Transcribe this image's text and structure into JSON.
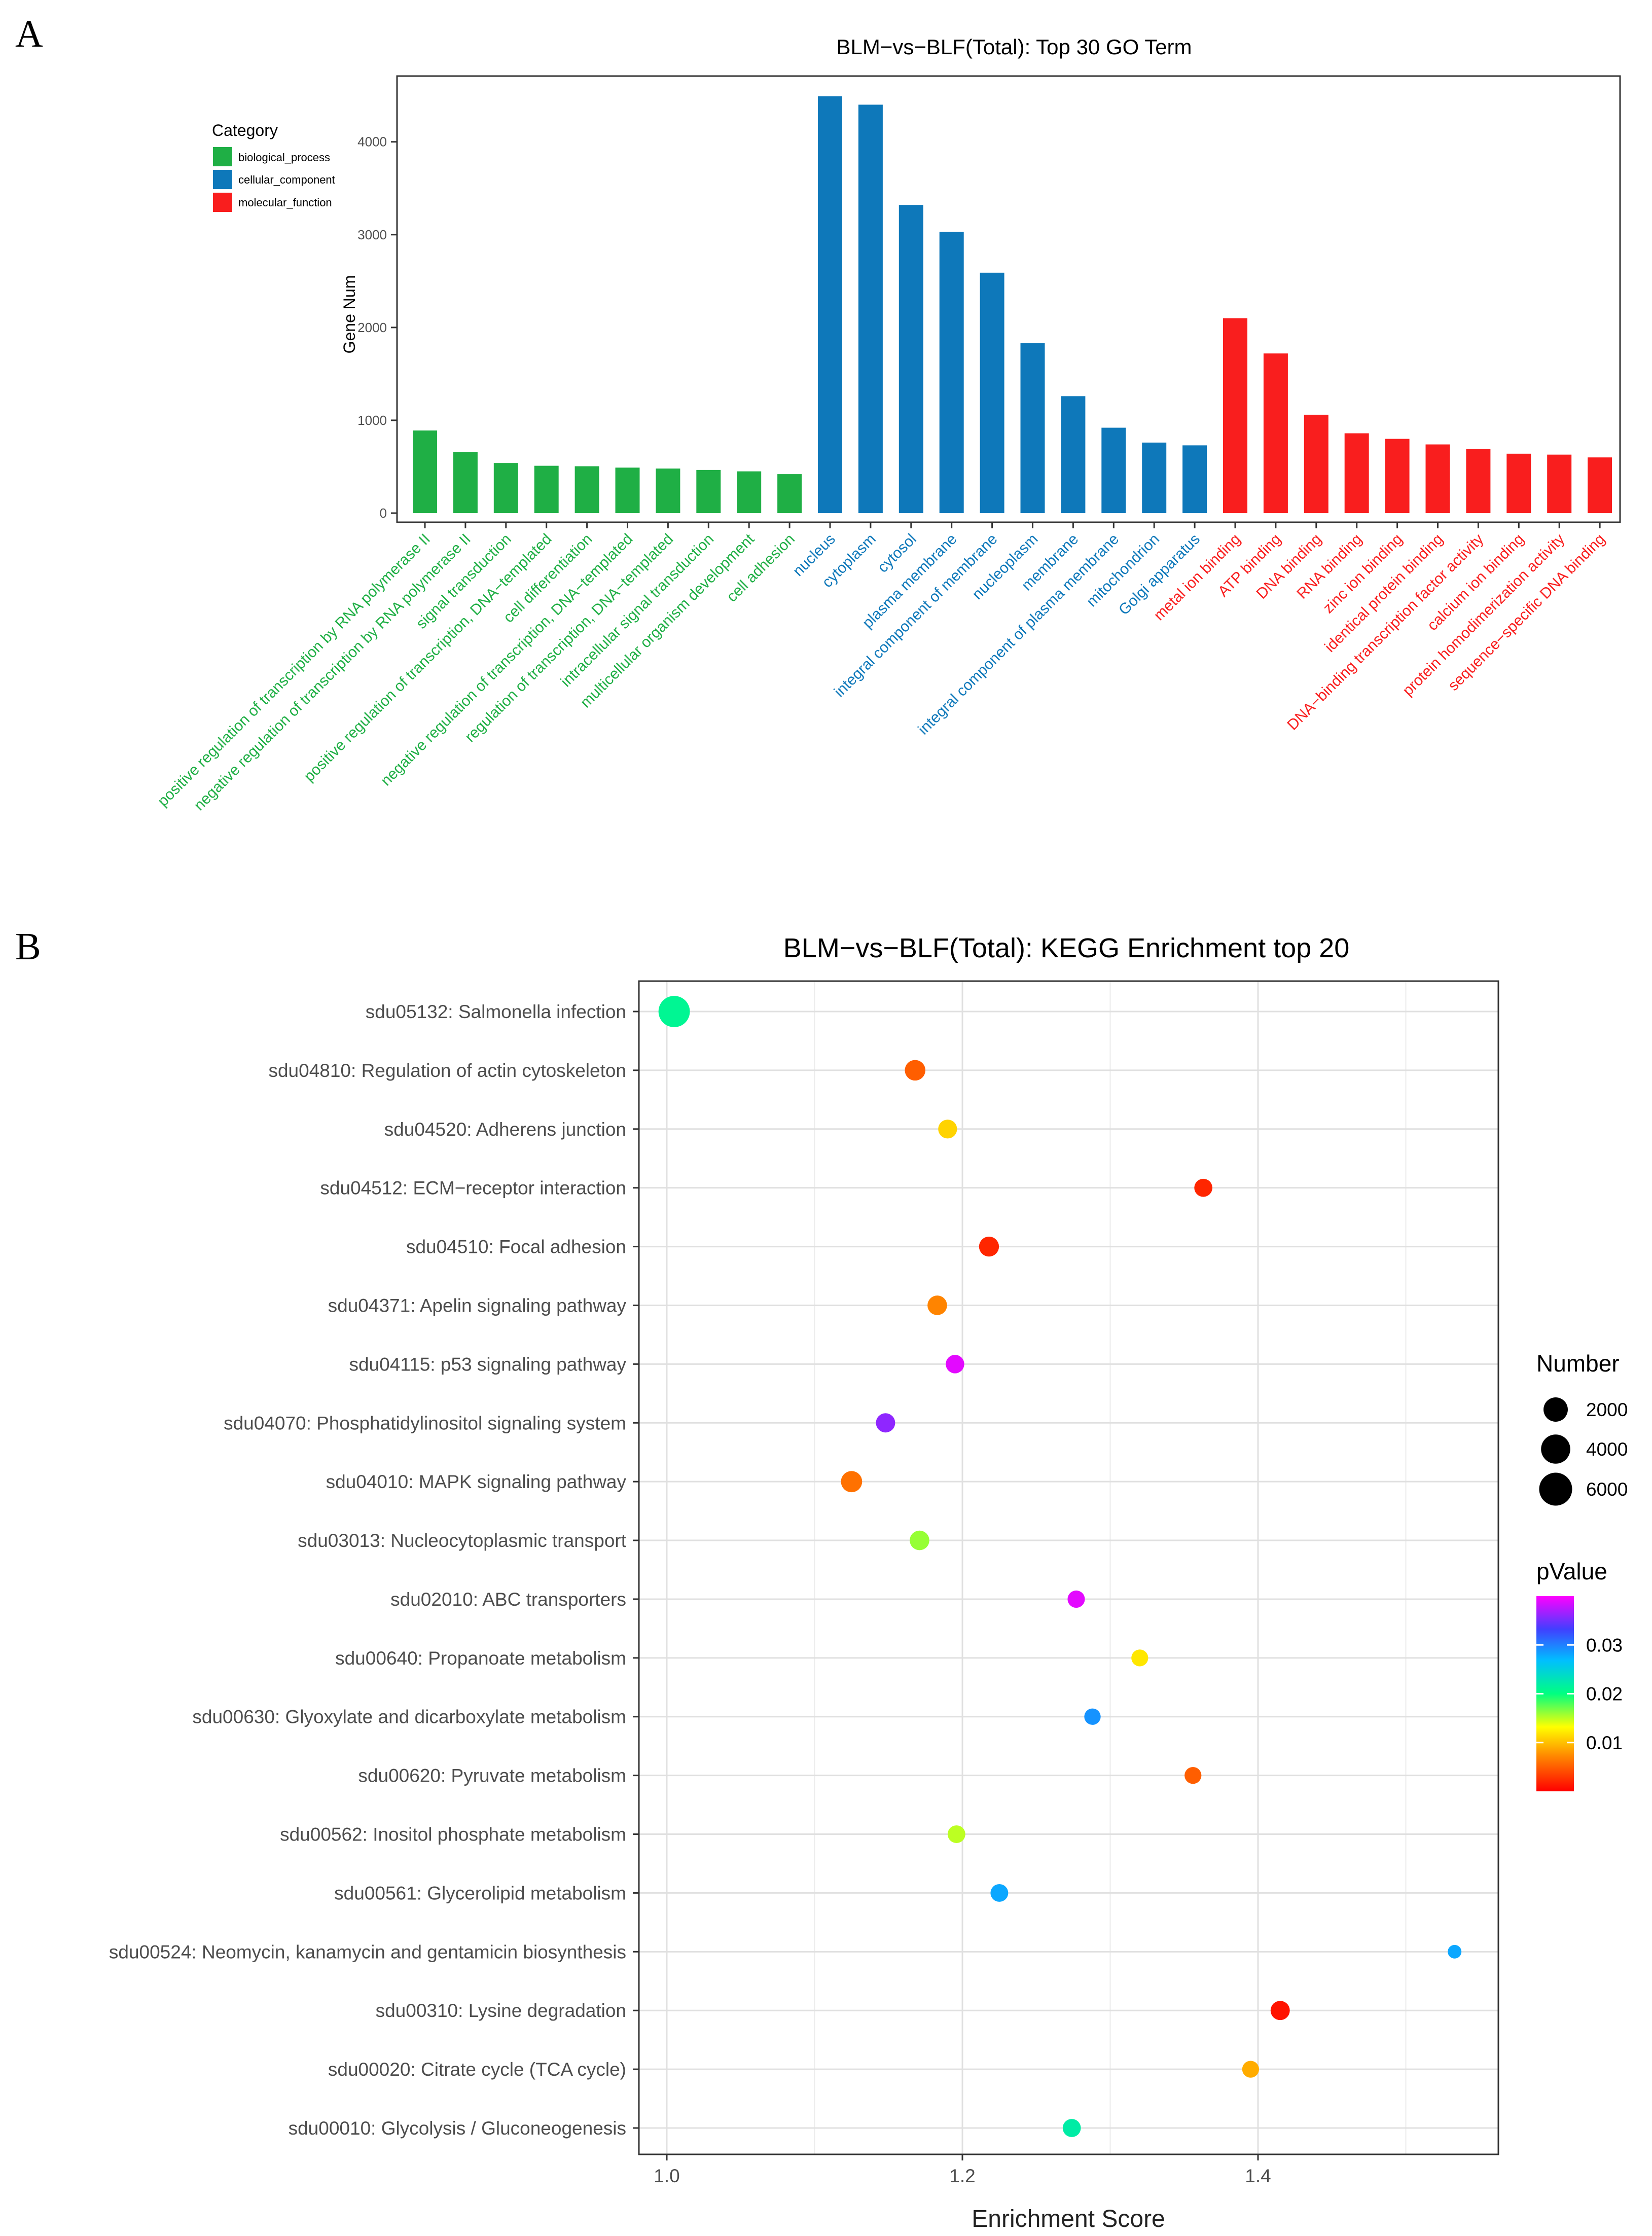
{
  "panels": {
    "a_label": "A",
    "b_label": "B"
  },
  "chart_data": [
    {
      "type": "bar",
      "title": "BLM−vs−BLF(Total): Top 30 GO Term",
      "xlabel": "",
      "ylabel": "Gene Num",
      "ylim": [
        0,
        4650
      ],
      "yticks": [
        0,
        1000,
        2000,
        3000,
        4000
      ],
      "legend": {
        "title": "Category",
        "position": "top-left",
        "entries": [
          {
            "name": "biological_process",
            "color": "#1FAF45"
          },
          {
            "name": "cellular_component",
            "color": "#0E78BA"
          },
          {
            "name": "molecular_function",
            "color": "#F91E1E"
          }
        ]
      },
      "categories": [
        "positive regulation of transcription by RNA polymerase II",
        "negative regulation of transcription by RNA polymerase II",
        "signal transduction",
        "positive regulation of transcription, DNA−templated",
        "cell differentiation",
        "negative regulation of transcription, DNA−templated",
        "regulation of transcription, DNA−templated",
        "intracellular signal transduction",
        "multicellular organism development",
        "cell adhesion",
        "nucleus",
        "cytoplasm",
        "cytosol",
        "plasma membrane",
        "integral component of membrane",
        "nucleoplasm",
        "membrane",
        "integral component of plasma membrane",
        "mitochondrion",
        "Golgi apparatus",
        "metal ion binding",
        "ATP binding",
        "DNA binding",
        "RNA binding",
        "zinc ion binding",
        "identical protein binding",
        "DNA−binding transcription factor activity",
        "calcium ion binding",
        "protein homodimerization activity",
        "sequence−specific DNA binding"
      ],
      "values": [
        890,
        660,
        540,
        510,
        505,
        490,
        480,
        465,
        450,
        420,
        4490,
        4400,
        3320,
        3030,
        2590,
        1830,
        1260,
        920,
        760,
        730,
        2100,
        1720,
        1060,
        860,
        800,
        740,
        690,
        640,
        630,
        600
      ],
      "groups": [
        "biological_process",
        "biological_process",
        "biological_process",
        "biological_process",
        "biological_process",
        "biological_process",
        "biological_process",
        "biological_process",
        "biological_process",
        "biological_process",
        "cellular_component",
        "cellular_component",
        "cellular_component",
        "cellular_component",
        "cellular_component",
        "cellular_component",
        "cellular_component",
        "cellular_component",
        "cellular_component",
        "cellular_component",
        "molecular_function",
        "molecular_function",
        "molecular_function",
        "molecular_function",
        "molecular_function",
        "molecular_function",
        "molecular_function",
        "molecular_function",
        "molecular_function",
        "molecular_function"
      ]
    },
    {
      "type": "scatter",
      "title": "BLM−vs−BLF(Total): KEGG Enrichment top 20",
      "xlabel": "Enrichment Score",
      "ylabel": "",
      "xlim": [
        0.975,
        1.555
      ],
      "xticks": [
        1.0,
        1.2,
        1.4
      ],
      "xtick_labels": [
        "1.0",
        "1.2",
        "1.4"
      ],
      "grid": true,
      "legend_size": {
        "title": "Number",
        "position": "right",
        "entries": [
          2000,
          4000,
          6000
        ]
      },
      "legend_color": {
        "title": "pValue",
        "position": "right",
        "range": [
          0.0,
          0.04
        ],
        "ticks": [
          0.01,
          0.02,
          0.03
        ],
        "tick_labels": [
          "0.01",
          "0.02",
          "0.03"
        ]
      },
      "points": [
        {
          "term": "sdu05132: Salmonella infection",
          "x": 1.005,
          "number": 6800,
          "pvalue": 0.021
        },
        {
          "term": "sdu04810: Regulation of actin cytoskeleton",
          "x": 1.168,
          "number": 2100,
          "pvalue": 0.005
        },
        {
          "term": "sdu04520: Adherens junction",
          "x": 1.19,
          "number": 1600,
          "pvalue": 0.011
        },
        {
          "term": "sdu04512: ECM−receptor interaction",
          "x": 1.363,
          "number": 1400,
          "pvalue": 0.002
        },
        {
          "term": "sdu04510: Focal adhesion",
          "x": 1.218,
          "number": 1900,
          "pvalue": 0.002
        },
        {
          "term": "sdu04371: Apelin signaling pathway",
          "x": 1.183,
          "number": 1800,
          "pvalue": 0.007
        },
        {
          "term": "sdu04115: p53 signaling pathway",
          "x": 1.195,
          "number": 1500,
          "pvalue": 0.039
        },
        {
          "term": "sdu04070: Phosphatidylinositol signaling system",
          "x": 1.148,
          "number": 1700,
          "pvalue": 0.036
        },
        {
          "term": "sdu04010: MAPK signaling pathway",
          "x": 1.125,
          "number": 2300,
          "pvalue": 0.006
        },
        {
          "term": "sdu03013: Nucleocytoplasmic transport",
          "x": 1.171,
          "number": 1800,
          "pvalue": 0.016
        },
        {
          "term": "sdu02010: ABC transporters",
          "x": 1.277,
          "number": 1200,
          "pvalue": 0.039
        },
        {
          "term": "sdu00640: Propanoate metabolism",
          "x": 1.32,
          "number": 1100,
          "pvalue": 0.012
        },
        {
          "term": "sdu00630: Glyoxylate and dicarboxylate metabolism",
          "x": 1.288,
          "number": 1000,
          "pvalue": 0.029
        },
        {
          "term": "sdu00620: Pyruvate metabolism",
          "x": 1.356,
          "number": 1100,
          "pvalue": 0.005
        },
        {
          "term": "sdu00562: Inositol phosphate metabolism",
          "x": 1.196,
          "number": 1300,
          "pvalue": 0.015
        },
        {
          "term": "sdu00561: Glycerolipid metabolism",
          "x": 1.225,
          "number": 1300,
          "pvalue": 0.028
        },
        {
          "term": "sdu00524: Neomycin, kanamycin and gentamicin biosynthesis",
          "x": 1.533,
          "number": 500,
          "pvalue": 0.028
        },
        {
          "term": "sdu00310: Lysine degradation",
          "x": 1.415,
          "number": 1700,
          "pvalue": 0.001
        },
        {
          "term": "sdu00020: Citrate cycle (TCA cycle)",
          "x": 1.395,
          "number": 1100,
          "pvalue": 0.009
        },
        {
          "term": "sdu00010: Glycolysis / Gluconeogenesis",
          "x": 1.274,
          "number": 1400,
          "pvalue": 0.022
        }
      ]
    }
  ]
}
